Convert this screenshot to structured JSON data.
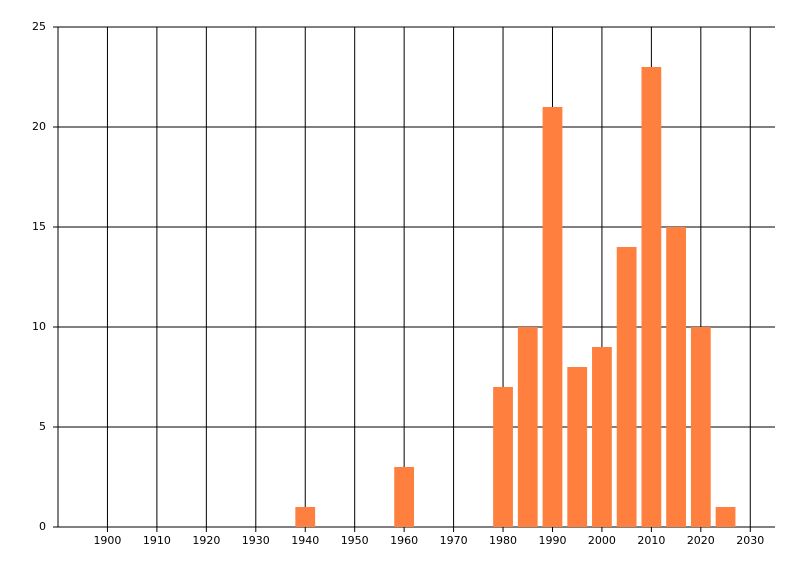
{
  "chart_data": {
    "type": "bar",
    "x": [
      1940,
      1960,
      1980,
      1985,
      1990,
      1995,
      2000,
      2005,
      2010,
      2015,
      2020,
      2025
    ],
    "values": [
      1,
      3,
      7,
      10,
      21,
      8,
      9,
      14,
      23,
      15,
      10,
      1
    ],
    "color": "#ff7f3f",
    "xlim": [
      1890,
      2035
    ],
    "xticks": [
      1900,
      1910,
      1920,
      1930,
      1940,
      1950,
      1960,
      1970,
      1980,
      1990,
      2000,
      2010,
      2020,
      2030
    ],
    "ylim": [
      0,
      25
    ],
    "yticks": [
      0,
      5,
      10,
      15,
      20,
      25
    ],
    "grid": true
  }
}
